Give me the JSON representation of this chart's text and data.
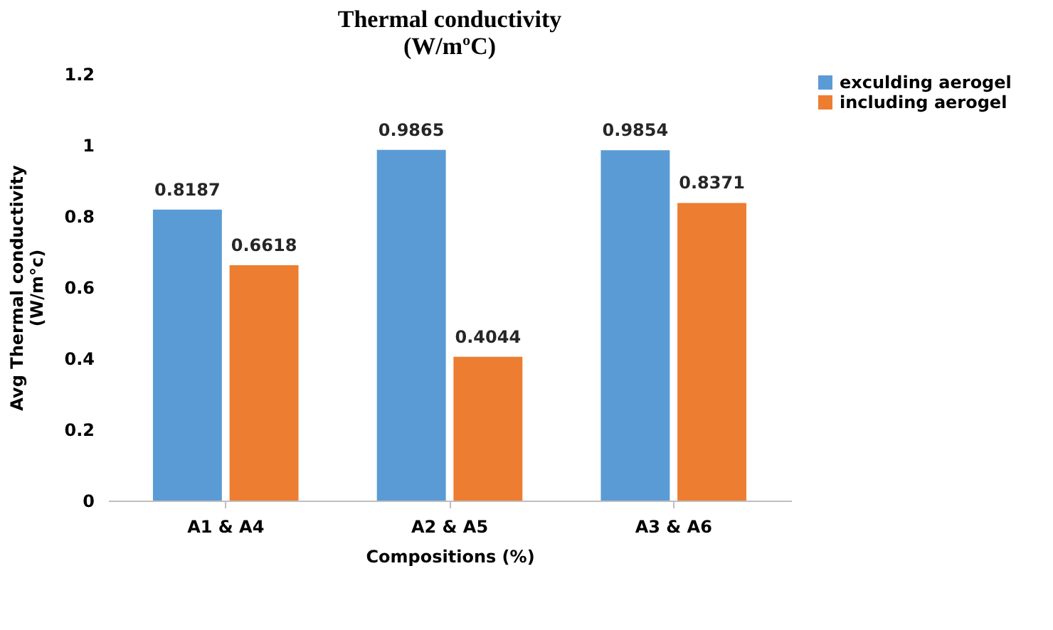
{
  "chart_data": {
    "type": "bar",
    "title": "Thermal conductivity\n(W/mºC)",
    "xlabel": "Compositions (%)",
    "ylabel": "Avg Thermal conductivity\n(W/m°c)",
    "categories": [
      "A1 & A4",
      "A2 & A5",
      "A3 & A6"
    ],
    "series": [
      {
        "name": "exculding aerogel",
        "color": "#5b9bd5",
        "values": [
          0.8187,
          0.9865,
          0.9854
        ]
      },
      {
        "name": "including aerogel",
        "color": "#ed7d31",
        "values": [
          0.6618,
          0.4044,
          0.8371
        ]
      }
    ],
    "ylim": [
      0,
      1.2
    ],
    "yticks": [
      0,
      0.2,
      0.4,
      0.6,
      0.8,
      1,
      1.2
    ],
    "grid": false,
    "legend": "right",
    "data_labels": true
  }
}
